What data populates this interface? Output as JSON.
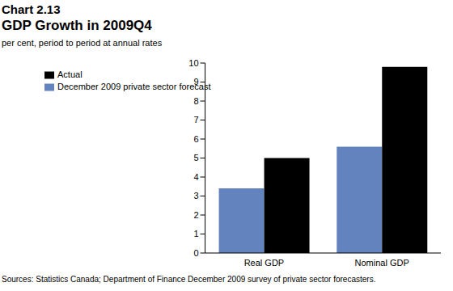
{
  "chart_data": {
    "type": "bar",
    "title": "GDP Growth in 2009Q4",
    "ylabel": "per cent, period to period at annual rates",
    "annotations": [
      "Chart 2.13",
      "Sources: Statistics Canada; Department of Finance December 2009 survey of private sector forecasters."
    ],
    "categories": [
      "Real GDP",
      "Nominal GDP"
    ],
    "series": [
      {
        "name": "December 2009 private sector forecast",
        "color": "#6383bf",
        "values": [
          3.4,
          5.6
        ]
      },
      {
        "name": "Actual",
        "color": "#000000",
        "values": [
          5.0,
          9.8
        ]
      }
    ],
    "ylim": [
      0,
      10
    ],
    "yticks": [
      0,
      1,
      2,
      3,
      4,
      5,
      6,
      7,
      8,
      9,
      10
    ],
    "grid": false,
    "legend": "upper left"
  }
}
